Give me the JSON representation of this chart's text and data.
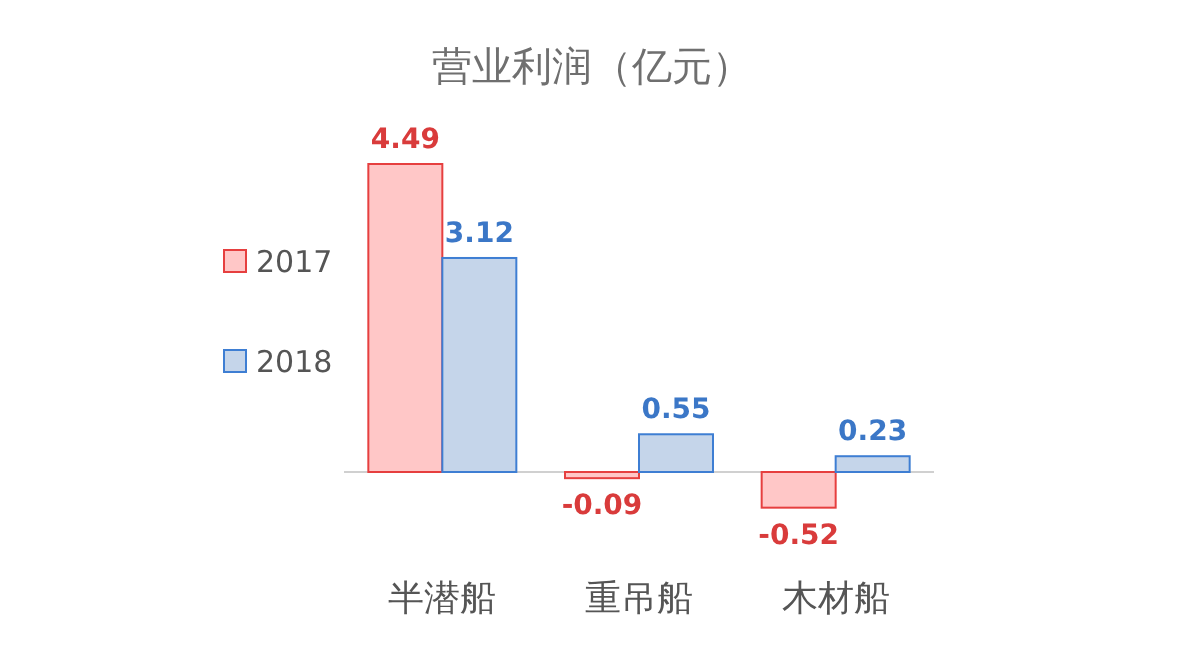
{
  "chart_data": {
    "type": "bar",
    "title": "营业利润（亿元）",
    "categories": [
      "半潜船",
      "重吊船",
      "木材船"
    ],
    "series": [
      {
        "name": "2017",
        "color": "#ffc7c7",
        "values": [
          4.49,
          -0.09,
          -0.52
        ]
      },
      {
        "name": "2018",
        "color": "#c5d5ea",
        "values": [
          3.12,
          0.55,
          0.23
        ]
      }
    ],
    "data_labels": true,
    "legend": "left"
  }
}
